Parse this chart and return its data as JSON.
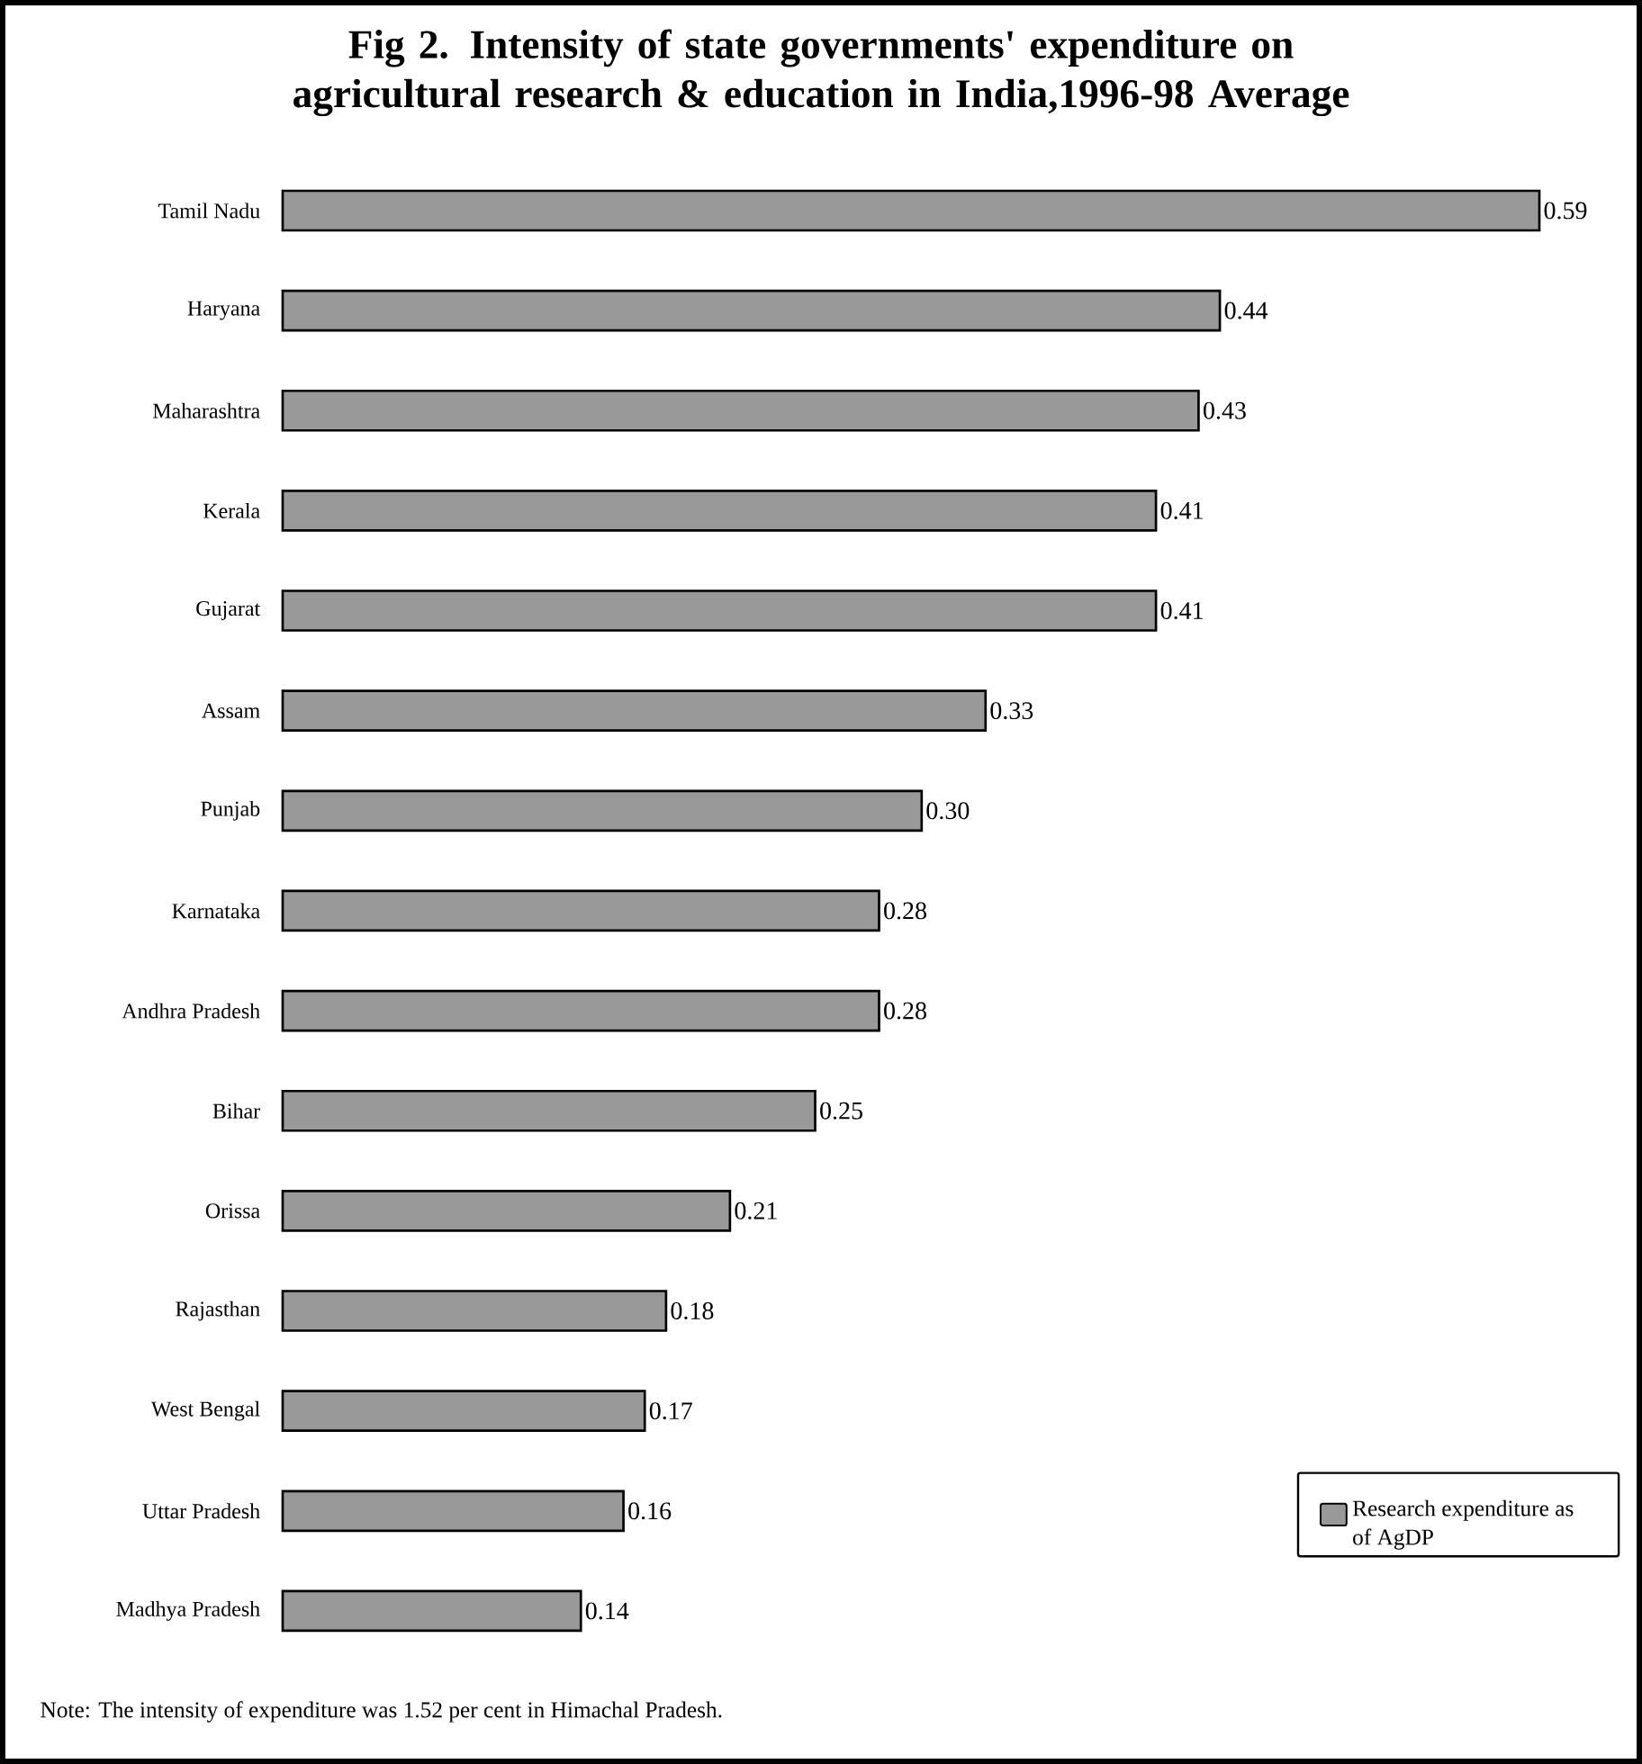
{
  "chart_data": {
    "type": "bar",
    "orientation": "horizontal",
    "title": "Fig 2. Intensity of state governments' expenditure on agricultural research & education in India,1996-98 Average",
    "categories": [
      "Tamil Nadu",
      "Haryana",
      "Maharashtra",
      "Kerala",
      "Gujarat",
      "Assam",
      "Punjab",
      "Karnataka",
      "Andhra Pradesh",
      "Bihar",
      "Orissa",
      "Rajasthan",
      "West Bengal",
      "Uttar Pradesh",
      "Madhya Pradesh"
    ],
    "series": [
      {
        "name": "Research expenditure as of AgDP",
        "color": "#999999",
        "values": [
          0.59,
          0.44,
          0.43,
          0.41,
          0.41,
          0.33,
          0.3,
          0.28,
          0.28,
          0.25,
          0.21,
          0.18,
          0.17,
          0.16,
          0.14
        ],
        "value_labels": [
          "0.59",
          "0.44",
          "0.43",
          "0.41",
          "0.41",
          "0.33",
          "0.30",
          "0.28",
          "0.28",
          "0.25",
          "0.21",
          "0.18",
          "0.17",
          "0.16",
          "0.14"
        ]
      }
    ],
    "legend": "bottom right",
    "annotations": [
      "Note: The intensity of expenditure was 1.52 per cent in Himachal Pradesh."
    ]
  }
}
